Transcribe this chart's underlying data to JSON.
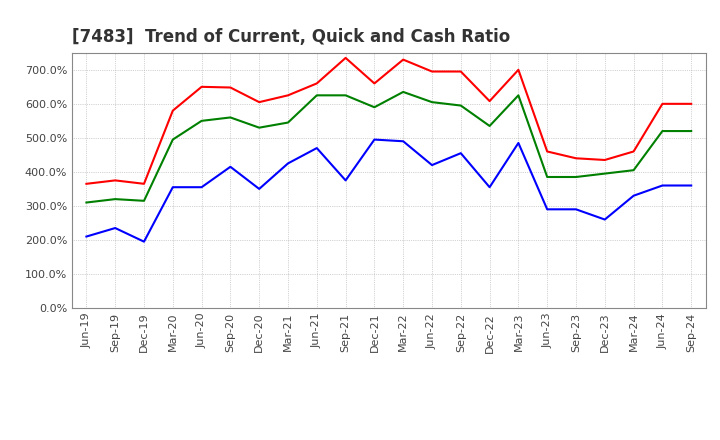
{
  "title": "[7483]  Trend of Current, Quick and Cash Ratio",
  "ylim": [
    0,
    750
  ],
  "yticks": [
    0,
    100,
    200,
    300,
    400,
    500,
    600,
    700
  ],
  "background_color": "#ffffff",
  "grid_color": "#aaaaaa",
  "x_labels": [
    "Jun-19",
    "Sep-19",
    "Dec-19",
    "Mar-20",
    "Jun-20",
    "Sep-20",
    "Dec-20",
    "Mar-21",
    "Jun-21",
    "Sep-21",
    "Dec-21",
    "Mar-22",
    "Jun-22",
    "Sep-22",
    "Dec-22",
    "Mar-23",
    "Jun-23",
    "Sep-23",
    "Dec-23",
    "Mar-24",
    "Jun-24",
    "Sep-24"
  ],
  "current_ratio": [
    365,
    375,
    365,
    580,
    650,
    648,
    605,
    625,
    660,
    735,
    660,
    730,
    695,
    695,
    608,
    700,
    460,
    440,
    435,
    460,
    600,
    600
  ],
  "quick_ratio": [
    310,
    320,
    315,
    495,
    550,
    560,
    530,
    545,
    625,
    625,
    590,
    635,
    605,
    595,
    535,
    625,
    385,
    385,
    395,
    405,
    520,
    520
  ],
  "cash_ratio": [
    210,
    235,
    195,
    355,
    355,
    415,
    350,
    425,
    470,
    375,
    495,
    490,
    420,
    455,
    355,
    485,
    290,
    290,
    260,
    330,
    360,
    360
  ],
  "current_color": "#ff0000",
  "quick_color": "#008000",
  "cash_color": "#0000ff",
  "line_width": 1.5,
  "title_fontsize": 12,
  "tick_fontsize": 8,
  "legend_fontsize": 9
}
